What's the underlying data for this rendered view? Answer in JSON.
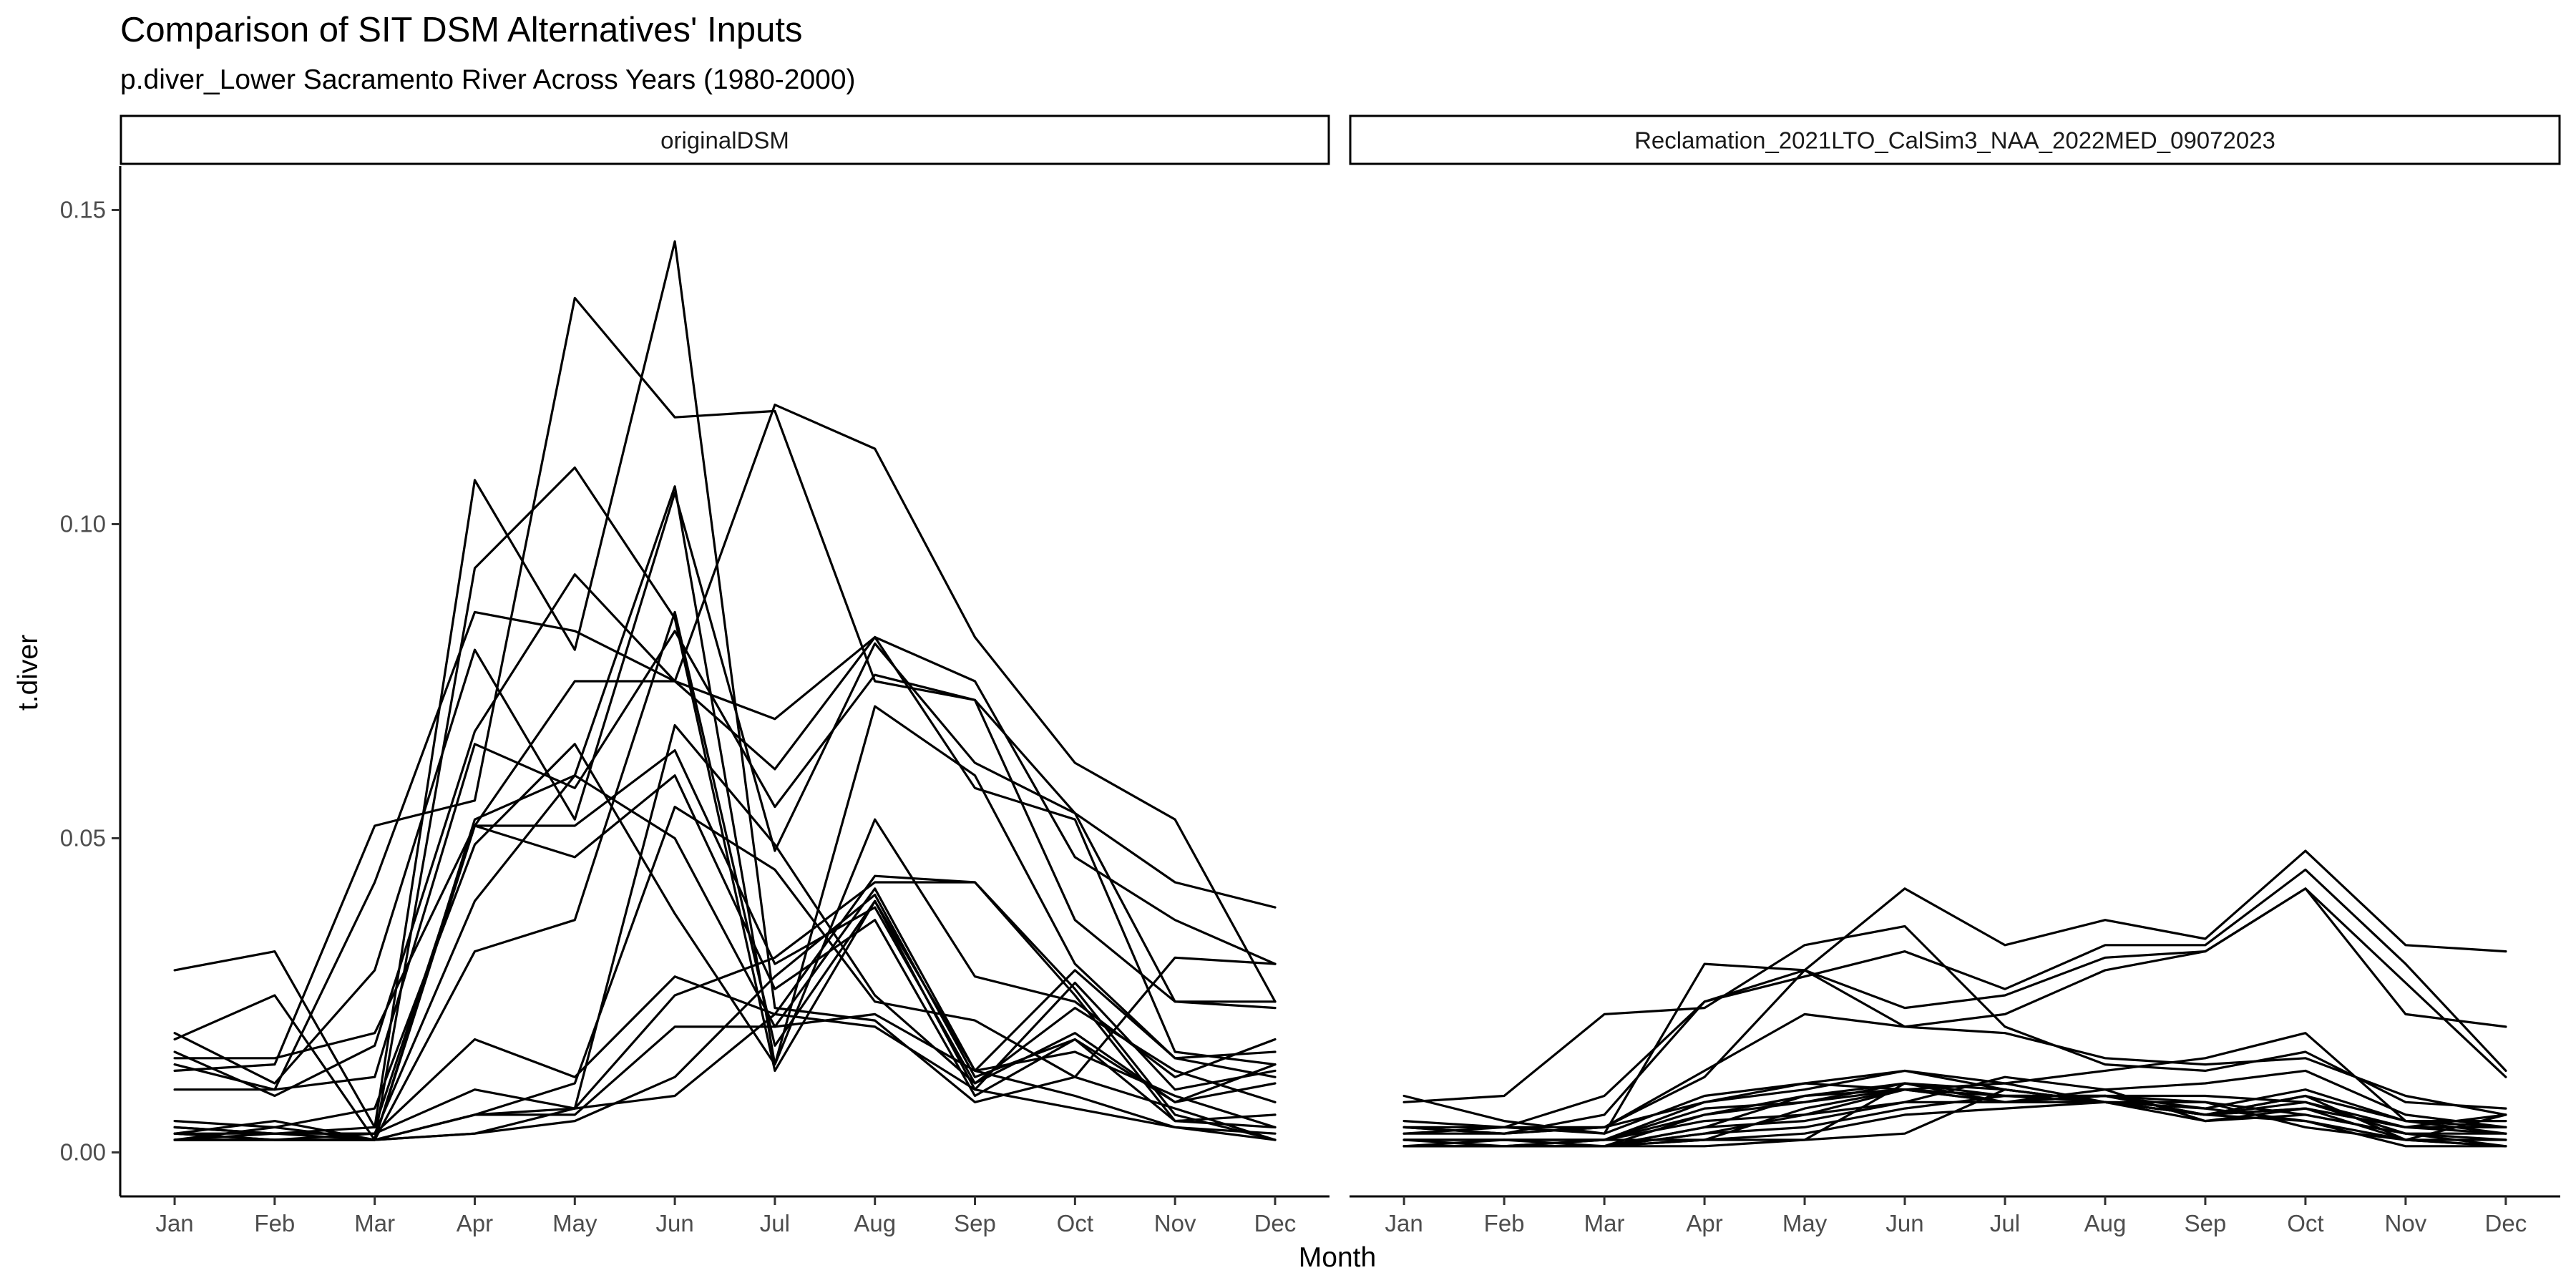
{
  "chart_data": {
    "type": "line",
    "title": "Comparison of SIT DSM Alternatives' Inputs",
    "subtitle": "p.diver_Lower Sacramento River Across Years (1980-2000)",
    "xlabel": "Month",
    "ylabel": "t.diver",
    "categories": [
      "Jan",
      "Feb",
      "Mar",
      "Apr",
      "May",
      "Jun",
      "Jul",
      "Aug",
      "Sep",
      "Oct",
      "Nov",
      "Dec"
    ],
    "ylim": [
      -0.007,
      0.157
    ],
    "yticks": [
      0.0,
      0.05,
      0.1,
      0.15
    ],
    "ytick_labels": [
      "0.00",
      "0.05",
      "0.10",
      "0.15"
    ],
    "grid": false,
    "legend": "none",
    "line_color": "#000000",
    "panels": [
      {
        "label": "originalDSM",
        "series": [
          {
            "values": [
              0.029,
              0.032,
              0.004,
              0.107,
              0.08,
              0.145,
              0.023,
              0.021,
              0.008,
              0.012,
              0.007,
              0.002
            ]
          },
          {
            "values": [
              0.018,
              0.025,
              0.002,
              0.093,
              0.109,
              0.085,
              0.013,
              0.04,
              0.01,
              0.027,
              0.01,
              0.013
            ]
          },
          {
            "values": [
              0.014,
              0.01,
              0.043,
              0.086,
              0.083,
              0.075,
              0.119,
              0.112,
              0.082,
              0.062,
              0.053,
              0.024
            ]
          },
          {
            "values": [
              0.013,
              0.014,
              0.052,
              0.056,
              0.136,
              0.117,
              0.118,
              0.075,
              0.072,
              0.054,
              0.024,
              0.024
            ]
          },
          {
            "values": [
              0.019,
              0.011,
              0.029,
              0.08,
              0.053,
              0.105,
              0.048,
              0.081,
              0.062,
              0.054,
              0.043,
              0.039
            ]
          },
          {
            "values": [
              0.016,
              0.009,
              0.017,
              0.067,
              0.092,
              0.075,
              0.069,
              0.082,
              0.075,
              0.047,
              0.037,
              0.03
            ]
          },
          {
            "values": [
              0.015,
              0.015,
              0.019,
              0.052,
              0.075,
              0.075,
              0.061,
              0.082,
              0.058,
              0.053,
              0.016,
              0.014
            ]
          },
          {
            "values": [
              0.01,
              0.01,
              0.012,
              0.065,
              0.058,
              0.083,
              0.055,
              0.076,
              0.072,
              0.037,
              0.024,
              0.023
            ]
          },
          {
            "values": [
              0.005,
              0.004,
              0.007,
              0.049,
              0.065,
              0.038,
              0.014,
              0.071,
              0.06,
              0.03,
              0.015,
              0.012
            ]
          },
          {
            "values": [
              0.004,
              0.003,
              0.003,
              0.04,
              0.06,
              0.106,
              0.014,
              0.053,
              0.028,
              0.024,
              0.012,
              0.018
            ]
          },
          {
            "values": [
              0.003,
              0.005,
              0.002,
              0.032,
              0.037,
              0.086,
              0.017,
              0.04,
              0.013,
              0.029,
              0.015,
              0.016
            ]
          },
          {
            "values": [
              0.002,
              0.004,
              0.002,
              0.052,
              0.052,
              0.064,
              0.03,
              0.039,
              0.011,
              0.019,
              0.008,
              0.011
            ]
          },
          {
            "values": [
              0.003,
              0.003,
              0.004,
              0.052,
              0.047,
              0.06,
              0.026,
              0.037,
              0.009,
              0.018,
              0.005,
              0.006
            ]
          },
          {
            "values": [
              0.004,
              0.003,
              0.002,
              0.053,
              0.06,
              0.05,
              0.02,
              0.042,
              0.013,
              0.016,
              0.009,
              0.004
            ]
          },
          {
            "values": [
              0.002,
              0.003,
              0.003,
              0.018,
              0.012,
              0.028,
              0.022,
              0.044,
              0.043,
              0.026,
              0.006,
              0.002
            ]
          },
          {
            "values": [
              0.003,
              0.002,
              0.003,
              0.01,
              0.007,
              0.068,
              0.049,
              0.025,
              0.011,
              0.023,
              0.013,
              0.008
            ]
          },
          {
            "values": [
              0.003,
              0.002,
              0.002,
              0.006,
              0.011,
              0.055,
              0.045,
              0.024,
              0.021,
              0.012,
              0.031,
              0.03
            ]
          },
          {
            "values": [
              0.002,
              0.002,
              0.002,
              0.006,
              0.007,
              0.025,
              0.031,
              0.043,
              0.043,
              0.025,
              0.005,
              0.004
            ]
          },
          {
            "values": [
              0.002,
              0.002,
              0.002,
              0.006,
              0.006,
              0.02,
              0.02,
              0.022,
              0.013,
              0.009,
              0.004,
              0.003
            ]
          },
          {
            "values": [
              0.002,
              0.002,
              0.002,
              0.003,
              0.005,
              0.012,
              0.028,
              0.041,
              0.012,
              0.018,
              0.008,
              0.014
            ]
          },
          {
            "values": [
              0.002,
              0.002,
              0.002,
              0.003,
              0.007,
              0.009,
              0.022,
              0.02,
              0.01,
              0.007,
              0.004,
              0.002
            ]
          }
        ]
      },
      {
        "label": "Reclamation_2021LTO_CalSim3_NAA_2022MED_09072023",
        "series": [
          {
            "values": [
              0.009,
              0.005,
              0.003,
              0.03,
              0.029,
              0.042,
              0.033,
              0.037,
              0.034,
              0.048,
              0.033,
              0.032
            ]
          },
          {
            "values": [
              0.008,
              0.009,
              0.022,
              0.023,
              0.033,
              0.036,
              0.02,
              0.014,
              0.013,
              0.016,
              0.008,
              0.007
            ]
          },
          {
            "values": [
              0.005,
              0.004,
              0.009,
              0.024,
              0.028,
              0.032,
              0.026,
              0.033,
              0.033,
              0.045,
              0.03,
              0.013
            ]
          },
          {
            "values": [
              0.004,
              0.003,
              0.006,
              0.024,
              0.029,
              0.023,
              0.025,
              0.031,
              0.032,
              0.042,
              0.022,
              0.02
            ]
          },
          {
            "values": [
              0.004,
              0.004,
              0.004,
              0.012,
              0.029,
              0.02,
              0.022,
              0.029,
              0.032,
              0.042,
              0.027,
              0.012
            ]
          },
          {
            "values": [
              0.004,
              0.003,
              0.004,
              0.013,
              0.022,
              0.02,
              0.019,
              0.015,
              0.014,
              0.015,
              0.009,
              0.006
            ]
          },
          {
            "values": [
              0.003,
              0.004,
              0.003,
              0.009,
              0.011,
              0.013,
              0.011,
              0.013,
              0.015,
              0.019,
              0.005,
              0.003
            ]
          },
          {
            "values": [
              0.003,
              0.003,
              0.004,
              0.008,
              0.01,
              0.013,
              0.01,
              0.008,
              0.007,
              0.01,
              0.005,
              0.004
            ]
          },
          {
            "values": [
              0.002,
              0.002,
              0.002,
              0.008,
              0.011,
              0.01,
              0.008,
              0.01,
              0.011,
              0.013,
              0.006,
              0.004
            ]
          },
          {
            "values": [
              0.002,
              0.001,
              0.002,
              0.007,
              0.008,
              0.011,
              0.009,
              0.008,
              0.006,
              0.009,
              0.005,
              0.005
            ]
          },
          {
            "values": [
              0.002,
              0.002,
              0.002,
              0.006,
              0.009,
              0.01,
              0.009,
              0.009,
              0.006,
              0.007,
              0.004,
              0.006
            ]
          },
          {
            "values": [
              0.002,
              0.002,
              0.002,
              0.005,
              0.006,
              0.01,
              0.011,
              0.008,
              0.006,
              0.008,
              0.003,
              0.003
            ]
          },
          {
            "values": [
              0.001,
              0.002,
              0.001,
              0.004,
              0.005,
              0.008,
              0.012,
              0.01,
              0.005,
              0.007,
              0.002,
              0.002
            ]
          },
          {
            "values": [
              0.001,
              0.001,
              0.001,
              0.003,
              0.004,
              0.007,
              0.009,
              0.009,
              0.008,
              0.006,
              0.003,
              0.001
            ]
          },
          {
            "values": [
              0.001,
              0.001,
              0.002,
              0.002,
              0.003,
              0.006,
              0.007,
              0.008,
              0.006,
              0.005,
              0.001,
              0.001
            ]
          },
          {
            "values": [
              0.001,
              0.001,
              0.001,
              0.002,
              0.002,
              0.003,
              0.01,
              0.008,
              0.008,
              0.004,
              0.002,
              0.001
            ]
          },
          {
            "values": [
              0.001,
              0.001,
              0.001,
              0.001,
              0.002,
              0.011,
              0.008,
              0.009,
              0.006,
              0.009,
              0.002,
              0.001
            ]
          },
          {
            "values": [
              0.001,
              0.001,
              0.001,
              0.004,
              0.009,
              0.011,
              0.01,
              0.008,
              0.005,
              0.006,
              0.003,
              0.002
            ]
          },
          {
            "values": [
              0.001,
              0.001,
              0.001,
              0.002,
              0.007,
              0.01,
              0.008,
              0.009,
              0.007,
              0.005,
              0.002,
              0.006
            ]
          },
          {
            "values": [
              0.001,
              0.001,
              0.001,
              0.006,
              0.008,
              0.01,
              0.009,
              0.009,
              0.009,
              0.008,
              0.004,
              0.004
            ]
          },
          {
            "values": [
              0.001,
              0.001,
              0.001,
              0.003,
              0.006,
              0.008,
              0.008,
              0.008,
              0.006,
              0.007,
              0.004,
              0.003
            ]
          }
        ]
      }
    ]
  }
}
